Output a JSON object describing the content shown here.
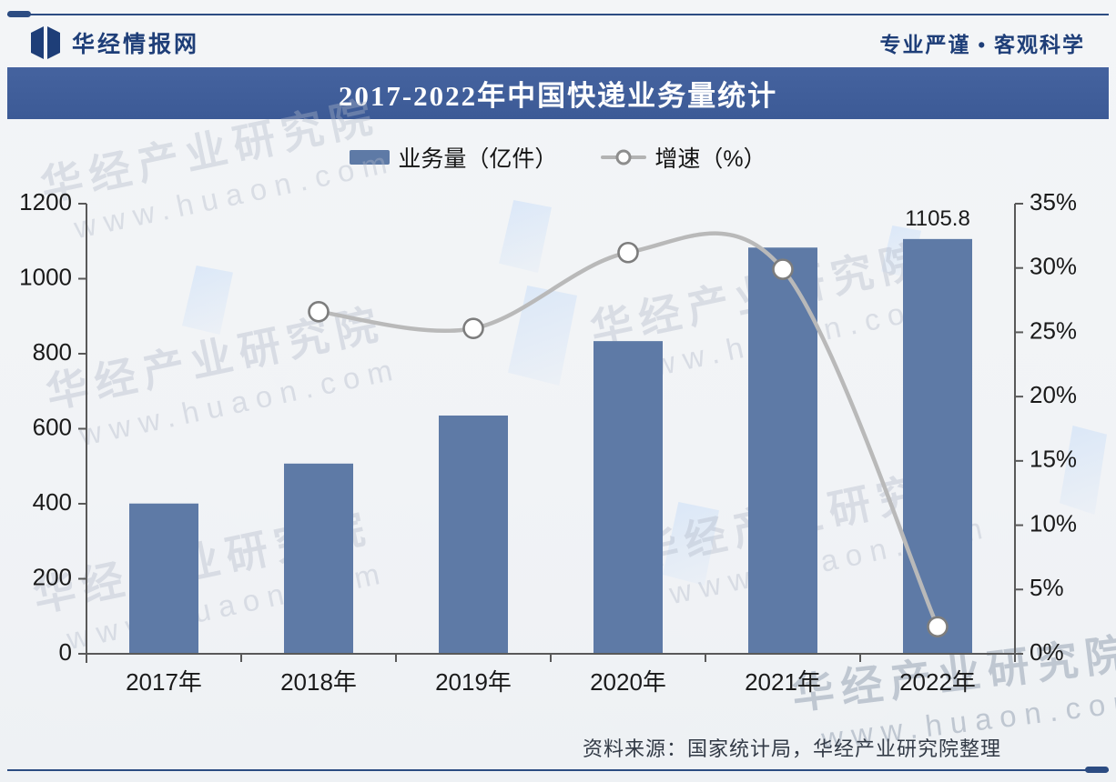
{
  "header": {
    "brand": "华经情报网",
    "slogan": "专业严谨 • 客观科学"
  },
  "title": "2017-2022年中国快递业务量统计",
  "legend": {
    "items": [
      {
        "label": "业务量（亿件）",
        "type": "bar"
      },
      {
        "label": "增速（%）",
        "type": "line"
      }
    ]
  },
  "watermark": {
    "text": "华经产业研究院",
    "url": "www.huaon.com"
  },
  "footer": {
    "source": "资料来源：国家统计局，华经产业研究院整理"
  },
  "colors": {
    "navy": "#1e3e78",
    "title_bar": "#3f5d99",
    "bar": "#5e7aa6",
    "line": "#b9b9b9",
    "marker_fill": "#ffffff",
    "marker_stroke": "#7d7d7d",
    "axis": "#595959",
    "tick_label": "#1a1a1a"
  },
  "chart_data": {
    "type": "combo (bar + smoothed line)",
    "categories": [
      "2017年",
      "2018年",
      "2019年",
      "2020年",
      "2021年",
      "2022年"
    ],
    "series": [
      {
        "name": "业务量（亿件）",
        "type": "bar",
        "axis": "left",
        "values": [
          400.6,
          507.1,
          635.2,
          833.6,
          1083.0,
          1105.8
        ]
      },
      {
        "name": "增速（%）",
        "type": "line",
        "axis": "right",
        "values": [
          null,
          26.6,
          25.3,
          31.2,
          29.9,
          2.1
        ]
      }
    ],
    "data_labels": [
      {
        "category_index": 5,
        "text": "1105.8"
      }
    ],
    "left_axis": {
      "min": 0,
      "max": 1200,
      "step": 200,
      "tick_labels": [
        "0",
        "200",
        "400",
        "600",
        "800",
        "1000",
        "1200"
      ]
    },
    "right_axis": {
      "min": 0,
      "max": 35,
      "step": 5,
      "tick_labels": [
        "0%",
        "5%",
        "10%",
        "15%",
        "20%",
        "25%",
        "30%",
        "35%"
      ]
    },
    "grid": false,
    "legend_position": "top-center",
    "line_smoothing": true
  }
}
